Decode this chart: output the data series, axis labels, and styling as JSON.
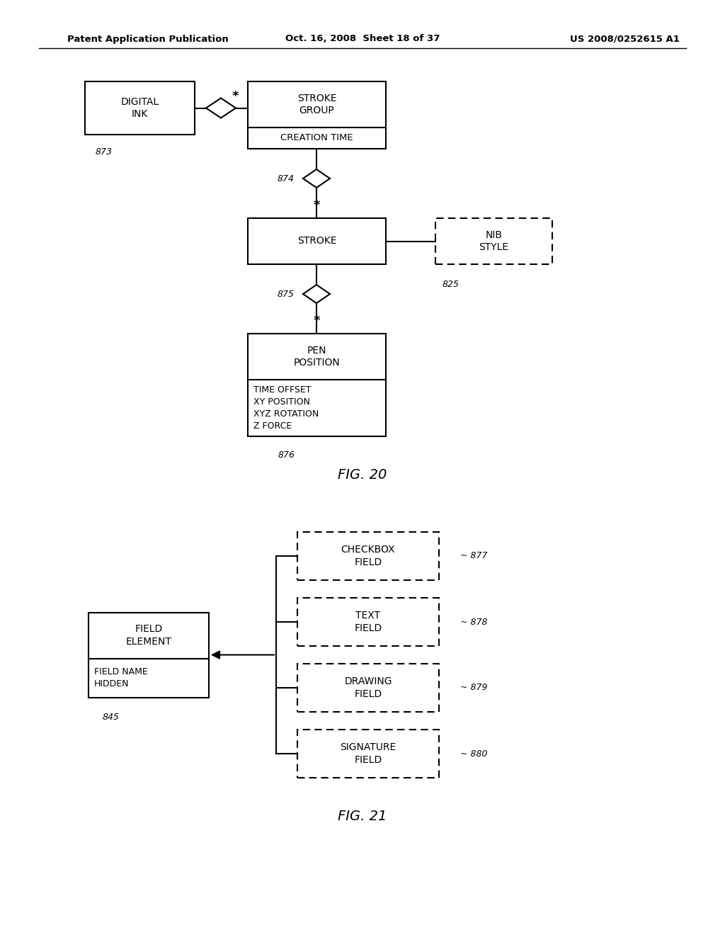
{
  "header_left": "Patent Application Publication",
  "header_center": "Oct. 16, 2008  Sheet 18 of 37",
  "header_right": "US 2008/0252615 A1",
  "bg_color": "#ffffff",
  "fig20_title": "FIG. 20",
  "fig21_title": "FIG. 21"
}
